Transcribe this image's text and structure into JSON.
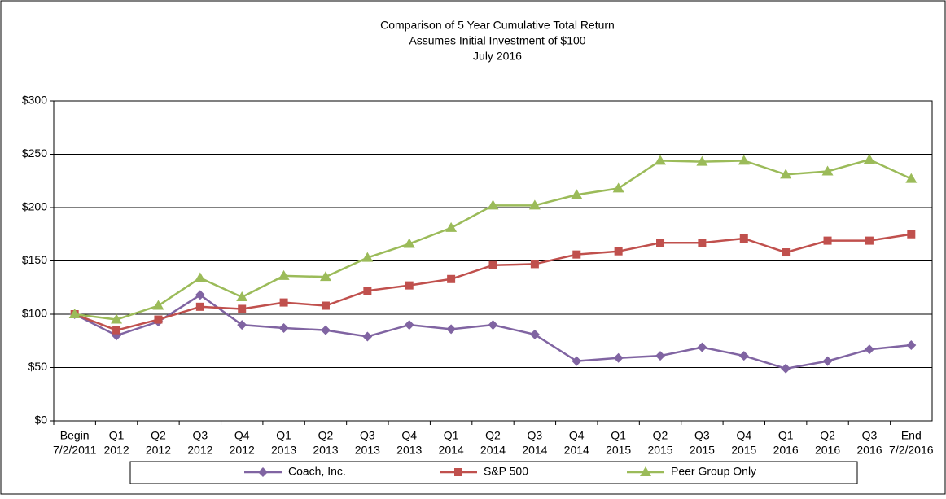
{
  "chart_data": {
    "type": "line",
    "title": "Comparison of 5 Year Cumulative Total Return",
    "subtitle": "Assumes Initial Investment of $100",
    "note": "July 2016",
    "categories": [
      [
        "Begin",
        "7/2/2011"
      ],
      [
        "Q1",
        "2012"
      ],
      [
        "Q2",
        "2012"
      ],
      [
        "Q3",
        "2012"
      ],
      [
        "Q4",
        "2012"
      ],
      [
        "Q1",
        "2013"
      ],
      [
        "Q2",
        "2013"
      ],
      [
        "Q3",
        "2013"
      ],
      [
        "Q4",
        "2013"
      ],
      [
        "Q1",
        "2014"
      ],
      [
        "Q2",
        "2014"
      ],
      [
        "Q3",
        "2014"
      ],
      [
        "Q4",
        "2014"
      ],
      [
        "Q1",
        "2015"
      ],
      [
        "Q2",
        "2015"
      ],
      [
        "Q3",
        "2015"
      ],
      [
        "Q4",
        "2015"
      ],
      [
        "Q1",
        "2016"
      ],
      [
        "Q2",
        "2016"
      ],
      [
        "Q3",
        "2016"
      ],
      [
        "End",
        "7/2/2016"
      ]
    ],
    "series": [
      {
        "name": "Coach, Inc.",
        "color": "#8064a2",
        "marker": "diamond",
        "values": [
          100,
          80,
          93,
          118,
          90,
          87,
          85,
          79,
          90,
          86,
          90,
          81,
          56,
          59,
          61,
          69,
          61,
          49,
          56,
          67,
          71
        ]
      },
      {
        "name": "S&P 500",
        "color": "#c0504d",
        "marker": "square",
        "values": [
          100,
          85,
          95,
          107,
          105,
          111,
          108,
          122,
          127,
          133,
          146,
          147,
          156,
          159,
          167,
          167,
          171,
          158,
          169,
          169,
          175
        ]
      },
      {
        "name": "Peer Group Only",
        "color": "#9bbb59",
        "marker": "triangle",
        "values": [
          100,
          95,
          108,
          134,
          116,
          136,
          135,
          153,
          166,
          181,
          202,
          202,
          212,
          218,
          244,
          243,
          244,
          231,
          234,
          245,
          227
        ]
      }
    ],
    "ylim": [
      0,
      300
    ],
    "yticks": [
      {
        "value": 0,
        "label": "$0"
      },
      {
        "value": 50,
        "label": "$50"
      },
      {
        "value": 100,
        "label": "$100"
      },
      {
        "value": 150,
        "label": "$150"
      },
      {
        "value": 200,
        "label": "$200"
      },
      {
        "value": 250,
        "label": "$250"
      },
      {
        "value": 300,
        "label": "$300"
      }
    ],
    "grid": true,
    "legend": "bottom"
  }
}
